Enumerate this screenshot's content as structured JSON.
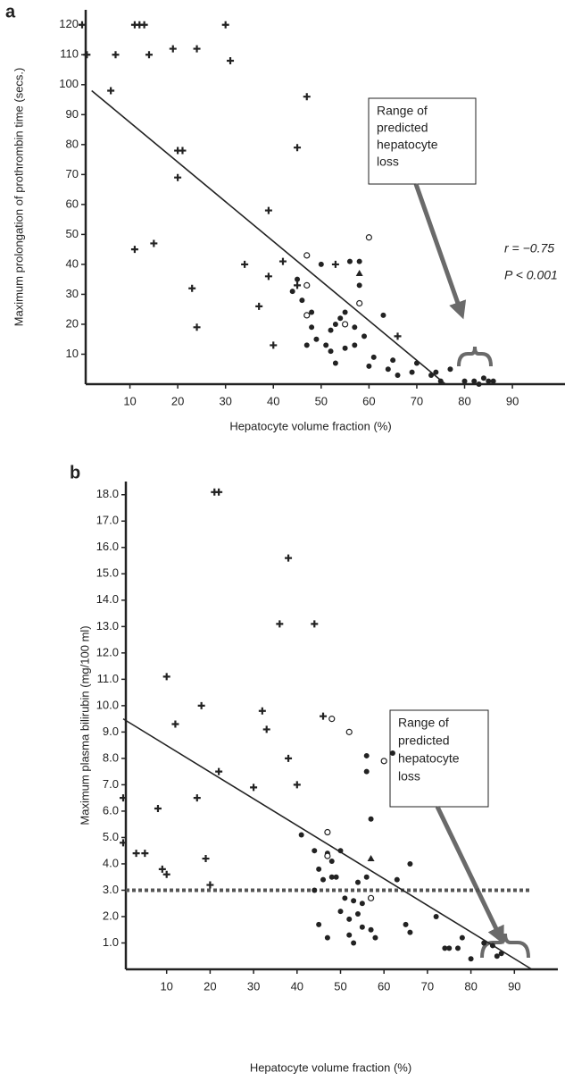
{
  "chart_data": [
    {
      "type": "scatter",
      "panel_label": "a",
      "x_label": "Hepatocyte volume fraction (%)",
      "y_label": "Maximum prolongation of prothrombin time (secs.)",
      "xlim": [
        0,
        101
      ],
      "ylim": [
        0,
        125
      ],
      "xticks": [
        10,
        20,
        30,
        40,
        50,
        60,
        70,
        80,
        90
      ],
      "yticks": [
        10,
        20,
        30,
        40,
        50,
        60,
        70,
        80,
        90,
        100,
        110,
        120
      ],
      "series": [
        {
          "marker": "plus",
          "color": "#222222",
          "x": [
            0,
            1,
            7,
            11,
            12,
            13,
            14,
            19,
            24,
            30,
            31,
            6,
            20,
            21,
            20,
            11,
            15,
            23,
            24,
            34,
            37,
            39,
            40,
            39,
            42,
            45,
            47,
            53,
            45,
            66
          ],
          "y": [
            120,
            110,
            110,
            120,
            120,
            120,
            110,
            112,
            112,
            120,
            108,
            98,
            78,
            78,
            69,
            45,
            47,
            32,
            19,
            40,
            26,
            58,
            13,
            36,
            41,
            79,
            96,
            40,
            33,
            16
          ]
        },
        {
          "marker": "dot",
          "color": "#222222",
          "x": [
            44,
            45,
            46,
            47,
            48,
            48,
            49,
            50,
            51,
            52,
            52,
            53,
            53,
            54,
            55,
            55,
            56,
            57,
            57,
            58,
            58,
            59,
            60,
            61,
            63,
            64,
            65,
            66,
            70,
            73,
            74,
            75,
            77,
            80,
            82,
            84,
            85,
            86,
            83,
            69
          ],
          "y": [
            31,
            35,
            28,
            13,
            24,
            19,
            15,
            40,
            13,
            18,
            11,
            7,
            20,
            22,
            24,
            12,
            41,
            13,
            19,
            41,
            33,
            16,
            6,
            9,
            23,
            5,
            8,
            3,
            7,
            3,
            4,
            1,
            5,
            1,
            1,
            2,
            1,
            1,
            0,
            4
          ]
        },
        {
          "marker": "circle",
          "color": "#222222",
          "x": [
            47,
            47,
            47,
            55,
            58,
            60
          ],
          "y": [
            43,
            33,
            23,
            20,
            27,
            49
          ]
        },
        {
          "marker": "triangle",
          "color": "#222222",
          "x": [
            58
          ],
          "y": [
            37
          ]
        }
      ],
      "fit": {
        "x": [
          2,
          76
        ],
        "y": [
          98,
          0
        ],
        "color": "#222222"
      },
      "annotation": [
        "Range of",
        "predicted",
        "hepatocyte",
        "loss"
      ],
      "stats": [
        "r = −0.75",
        "P < 0.001"
      ]
    },
    {
      "type": "scatter",
      "panel_label": "b",
      "x_label": "Hepatocyte volume fraction (%)",
      "y_label": "Maximum plasma bilirubin (mg/100 ml)",
      "xlim": [
        0,
        100
      ],
      "ylim": [
        0,
        18.5
      ],
      "xticks": [
        10,
        20,
        30,
        40,
        50,
        60,
        70,
        80,
        90
      ],
      "yticks": [
        {
          "value": 1,
          "label": "1.0"
        },
        {
          "value": 2,
          "label": "2.0"
        },
        {
          "value": 3,
          "label": "3.0"
        },
        {
          "value": 4,
          "label": "4.0"
        },
        {
          "value": 5,
          "label": "5.0"
        },
        {
          "value": 6,
          "label": "6.0"
        },
        {
          "value": 7,
          "label": "7.0"
        },
        {
          "value": 8,
          "label": "8.0"
        },
        {
          "value": 9,
          "label": "9.0"
        },
        {
          "value": 10,
          "label": "10.0"
        },
        {
          "value": 11,
          "label": "11.0"
        },
        {
          "value": 12,
          "label": "12.0"
        },
        {
          "value": 13,
          "label": "13.0"
        },
        {
          "value": 14,
          "label": "14.0"
        },
        {
          "value": 15,
          "label": "15.0"
        },
        {
          "value": 16,
          "label": "16.0"
        },
        {
          "value": 17,
          "label": "17.0"
        },
        {
          "value": 18,
          "label": "18.0"
        }
      ],
      "series": [
        {
          "marker": "plus",
          "color": "#222222",
          "x": [
            0,
            0,
            3,
            5,
            8,
            9,
            10,
            10,
            12,
            17,
            18,
            19,
            20,
            21,
            22,
            22,
            30,
            32,
            33,
            36,
            38,
            38,
            40,
            44,
            46
          ],
          "y": [
            6.5,
            4.8,
            4.4,
            4.4,
            6.1,
            3.8,
            3.6,
            11.1,
            9.3,
            6.5,
            10,
            4.2,
            3.2,
            18.1,
            18.1,
            7.5,
            6.9,
            9.8,
            9.1,
            13.1,
            15.6,
            8,
            7,
            13.1,
            9.6
          ]
        },
        {
          "marker": "dot",
          "color": "#222222",
          "x": [
            41,
            44,
            44,
            45,
            45,
            46,
            47,
            47,
            48,
            48,
            49,
            50,
            50,
            51,
            52,
            52,
            53,
            53,
            54,
            54,
            55,
            55,
            56,
            56,
            56,
            57,
            57,
            58,
            62,
            63,
            65,
            66,
            66,
            72,
            74,
            75,
            77,
            78,
            80,
            83,
            85,
            86,
            87
          ],
          "y": [
            5.1,
            4.5,
            3,
            3.8,
            1.7,
            3.4,
            1.2,
            4.4,
            4.1,
            3.5,
            3.5,
            4.5,
            2.2,
            2.7,
            1.9,
            1.3,
            1,
            2.6,
            2.1,
            3.3,
            2.5,
            1.6,
            3.5,
            8.1,
            7.5,
            5.7,
            1.5,
            1.2,
            8.2,
            3.4,
            1.7,
            4,
            1.4,
            2,
            0.8,
            0.8,
            0.8,
            1.2,
            0.4,
            1,
            0.9,
            0.5,
            0.6
          ]
        },
        {
          "marker": "circle",
          "color": "#222222",
          "x": [
            47,
            48,
            52,
            57,
            60,
            47
          ],
          "y": [
            5.2,
            9.5,
            9,
            2.7,
            7.9,
            4.3
          ]
        },
        {
          "marker": "triangle",
          "color": "#222222",
          "x": [
            57
          ],
          "y": [
            4.2
          ]
        }
      ],
      "fit": {
        "x": [
          0,
          94
        ],
        "y": [
          9.5,
          0
        ],
        "color": "#222222"
      },
      "threshold": {
        "value": 3,
        "color": "#555555"
      },
      "annotation": [
        "Range of",
        "predicted",
        "hepatocyte",
        "loss"
      ]
    }
  ]
}
